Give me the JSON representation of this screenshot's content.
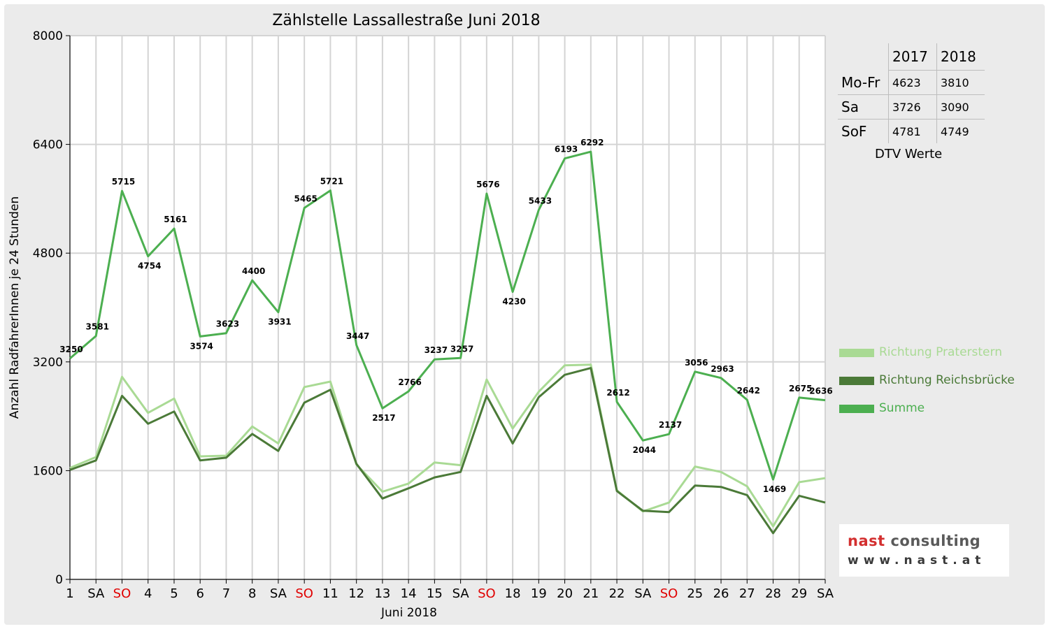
{
  "chart_data": {
    "type": "line",
    "title": "Zählstelle Lassallestraße Juni 2018",
    "xlabel": "Juni 2018",
    "ylabel": "Anzahl RadfahrerInnen je 24 Stunden",
    "ylim": [
      0,
      8000
    ],
    "yticks": [
      0,
      1600,
      3200,
      4800,
      6400,
      8000
    ],
    "grid": true,
    "legend_position": "right",
    "categories": [
      "1",
      "SA",
      "SO",
      "4",
      "5",
      "6",
      "7",
      "8",
      "SA",
      "SO",
      "11",
      "12",
      "13",
      "14",
      "15",
      "SA",
      "SO",
      "18",
      "19",
      "20",
      "21",
      "22",
      "SA",
      "SO",
      "25",
      "26",
      "27",
      "28",
      "29",
      "SA"
    ],
    "weekend_categories": [
      2,
      9,
      16,
      23
    ],
    "series": [
      {
        "name": "Richtung Praterstern",
        "color": "#a9da94",
        "values": [
          1640,
          1800,
          2980,
          2450,
          2660,
          1810,
          1820,
          2250,
          2000,
          2830,
          2910,
          1690,
          1290,
          1410,
          1720,
          1680,
          2940,
          2220,
          2760,
          3150,
          3160,
          1310,
          1000,
          1130,
          1660,
          1580,
          1370,
          780,
          1430,
          1490
        ]
      },
      {
        "name": "Richtung Reichsbrücke",
        "color": "#4b7a38",
        "values": [
          1610,
          1750,
          2700,
          2290,
          2470,
          1750,
          1790,
          2140,
          1890,
          2600,
          2790,
          1700,
          1190,
          1340,
          1500,
          1580,
          2700,
          2000,
          2680,
          3010,
          3110,
          1300,
          1010,
          990,
          1380,
          1360,
          1240,
          680,
          1230,
          1130
        ]
      },
      {
        "name": "Summe",
        "color": "#4caf50",
        "values": [
          3250,
          3581,
          5715,
          4754,
          5161,
          3574,
          3623,
          4400,
          3931,
          5465,
          5721,
          3447,
          2517,
          2766,
          3237,
          3257,
          5676,
          4230,
          5433,
          6193,
          6292,
          2612,
          2044,
          2137,
          3056,
          2963,
          2642,
          1469,
          2675,
          2636
        ]
      }
    ]
  },
  "dtv_table": {
    "headers": [
      "2017",
      "2018"
    ],
    "rows": [
      {
        "label": "Mo-Fr",
        "v2017": "4623",
        "v2018": "3810"
      },
      {
        "label": "Sa",
        "v2017": "3726",
        "v2018": "3090"
      },
      {
        "label": "SoF",
        "v2017": "4781",
        "v2018": "4749"
      }
    ],
    "caption": "DTV Werte"
  },
  "logo": {
    "part1": "nast",
    "part2": "consulting",
    "url": "www.nast.at",
    "color1": "#d32f2f",
    "color2": "#5a5a5a"
  },
  "colors": {
    "weekend_label": "#e00000",
    "grid": "#d4d4d4",
    "plot_bg": "#ffffff"
  }
}
